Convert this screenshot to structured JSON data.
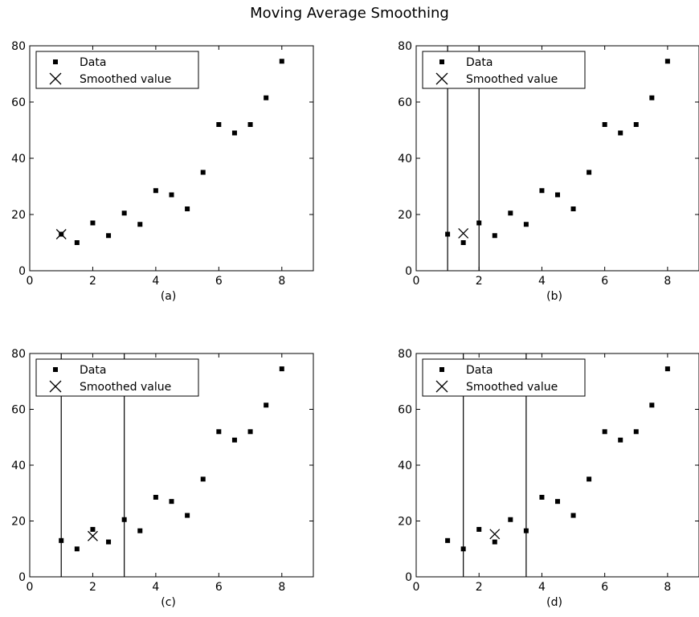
{
  "title": "Moving Average Smoothing",
  "legend": {
    "data_label": "Data",
    "smoothed_label": "Smoothed value"
  },
  "chart_data": [
    {
      "type": "scatter",
      "xlabel": "(a)",
      "xlim": [
        0,
        9
      ],
      "ylim": [
        0,
        80
      ],
      "xticks": [
        0,
        2,
        4,
        6,
        8
      ],
      "yticks": [
        0,
        20,
        40,
        60,
        80
      ],
      "legend_position": "top-left",
      "series": [
        {
          "name": "Data",
          "marker": "dot",
          "x": [
            1,
            1.5,
            2,
            2.5,
            3,
            3.5,
            4,
            4.5,
            5,
            5.5,
            6,
            6.5,
            7,
            7.5,
            8
          ],
          "y": [
            13,
            10,
            17,
            12.5,
            20.5,
            16.5,
            28.5,
            27,
            22,
            35,
            52,
            49,
            52,
            61.5,
            74.5
          ]
        },
        {
          "name": "Smoothed value",
          "marker": "x",
          "x": [
            1
          ],
          "y": [
            13
          ]
        }
      ],
      "window": null
    },
    {
      "type": "scatter",
      "xlabel": "(b)",
      "xlim": [
        0,
        9
      ],
      "ylim": [
        0,
        80
      ],
      "xticks": [
        0,
        2,
        4,
        6,
        8
      ],
      "yticks": [
        0,
        20,
        40,
        60,
        80
      ],
      "legend_position": "top-left",
      "series": [
        {
          "name": "Data",
          "marker": "dot",
          "x": [
            1,
            1.5,
            2,
            2.5,
            3,
            3.5,
            4,
            4.5,
            5,
            5.5,
            6,
            6.5,
            7,
            7.5,
            8
          ],
          "y": [
            13,
            10,
            17,
            12.5,
            20.5,
            16.5,
            28.5,
            27,
            22,
            35,
            52,
            49,
            52,
            61.5,
            74.5
          ]
        },
        {
          "name": "Smoothed value",
          "marker": "x",
          "x": [
            1.5
          ],
          "y": [
            13.3
          ]
        }
      ],
      "window": [
        1,
        2
      ]
    },
    {
      "type": "scatter",
      "xlabel": "(c)",
      "xlim": [
        0,
        9
      ],
      "ylim": [
        0,
        80
      ],
      "xticks": [
        0,
        2,
        4,
        6,
        8
      ],
      "yticks": [
        0,
        20,
        40,
        60,
        80
      ],
      "legend_position": "top-left",
      "series": [
        {
          "name": "Data",
          "marker": "dot",
          "x": [
            1,
            1.5,
            2,
            2.5,
            3,
            3.5,
            4,
            4.5,
            5,
            5.5,
            6,
            6.5,
            7,
            7.5,
            8
          ],
          "y": [
            13,
            10,
            17,
            12.5,
            20.5,
            16.5,
            28.5,
            27,
            22,
            35,
            52,
            49,
            52,
            61.5,
            74.5
          ]
        },
        {
          "name": "Smoothed value",
          "marker": "x",
          "x": [
            2
          ],
          "y": [
            14.6
          ]
        }
      ],
      "window": [
        1,
        3
      ]
    },
    {
      "type": "scatter",
      "xlabel": "(d)",
      "xlim": [
        0,
        9
      ],
      "ylim": [
        0,
        80
      ],
      "xticks": [
        0,
        2,
        4,
        6,
        8
      ],
      "yticks": [
        0,
        20,
        40,
        60,
        80
      ],
      "legend_position": "top-left",
      "series": [
        {
          "name": "Data",
          "marker": "dot",
          "x": [
            1,
            1.5,
            2,
            2.5,
            3,
            3.5,
            4,
            4.5,
            5,
            5.5,
            6,
            6.5,
            7,
            7.5,
            8
          ],
          "y": [
            13,
            10,
            17,
            12.5,
            20.5,
            16.5,
            28.5,
            27,
            22,
            35,
            52,
            49,
            52,
            61.5,
            74.5
          ]
        },
        {
          "name": "Smoothed value",
          "marker": "x",
          "x": [
            2.5
          ],
          "y": [
            15.3
          ]
        }
      ],
      "window": [
        1.5,
        3.5
      ]
    }
  ]
}
